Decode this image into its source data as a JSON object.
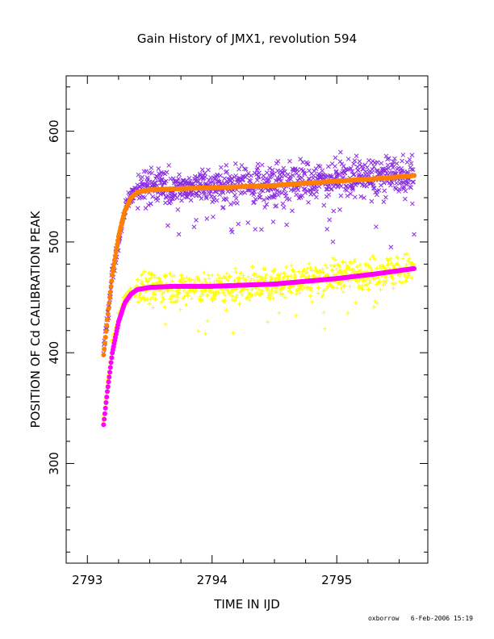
{
  "chart_data": {
    "type": "scatter",
    "title": "Gain History of JMX1, revolution 594",
    "xlabel": "TIME IN IJD",
    "ylabel": "POSITION OF Cd CALIBRATION PEAK",
    "xlim": [
      2792.83,
      2795.73
    ],
    "ylim": [
      210,
      650
    ],
    "x_ticks": [
      2793,
      2794,
      2795
    ],
    "x_tick_labels": [
      "2793",
      "2794",
      "2795"
    ],
    "y_ticks": [
      300,
      400,
      500,
      600
    ],
    "y_tick_labels": [
      "300",
      "400",
      "500",
      "600"
    ],
    "x_minor_step": 0.25,
    "y_minor_step": 20,
    "grid": false,
    "legend": "none",
    "footer": "oxborrow   6-Feb-2006 15:19",
    "series": [
      {
        "marker": "x",
        "color": "#8a2be2",
        "kind": "scatter",
        "x_range": [
          2793.13,
          2795.62
        ],
        "baseline": [
          [
            2793.13,
            400
          ],
          [
            2793.2,
            470
          ],
          [
            2793.3,
            530
          ],
          [
            2793.4,
            548
          ],
          [
            2793.6,
            550
          ],
          [
            2794.0,
            550
          ],
          [
            2794.5,
            552
          ],
          [
            2795.0,
            558
          ],
          [
            2795.62,
            560
          ]
        ],
        "spread": 12,
        "outlier_low": 50
      },
      {
        "marker": "+",
        "color": "#ffff00",
        "kind": "scatter",
        "x_range": [
          2793.13,
          2795.62
        ],
        "baseline": [
          [
            2793.13,
            340
          ],
          [
            2793.2,
            410
          ],
          [
            2793.3,
            450
          ],
          [
            2793.4,
            458
          ],
          [
            2793.6,
            460
          ],
          [
            2794.0,
            458
          ],
          [
            2794.5,
            462
          ],
          [
            2795.0,
            470
          ],
          [
            2795.62,
            476
          ]
        ],
        "spread": 10,
        "outlier_low": 40
      },
      {
        "marker": "o",
        "color": "#ff8000",
        "kind": "fit",
        "points": [
          [
            2793.13,
            398
          ],
          [
            2793.16,
            430
          ],
          [
            2793.2,
            470
          ],
          [
            2793.25,
            505
          ],
          [
            2793.3,
            528
          ],
          [
            2793.35,
            540
          ],
          [
            2793.4,
            545
          ],
          [
            2793.5,
            547
          ],
          [
            2793.7,
            548
          ],
          [
            2794.0,
            549
          ],
          [
            2794.5,
            551
          ],
          [
            2795.0,
            555
          ],
          [
            2795.3,
            557
          ],
          [
            2795.62,
            560
          ]
        ]
      },
      {
        "marker": "o",
        "color": "#ff00ff",
        "kind": "fit",
        "points": [
          [
            2793.13,
            335
          ],
          [
            2793.16,
            365
          ],
          [
            2793.2,
            400
          ],
          [
            2793.25,
            428
          ],
          [
            2793.3,
            445
          ],
          [
            2793.35,
            453
          ],
          [
            2793.4,
            457
          ],
          [
            2793.5,
            459
          ],
          [
            2793.7,
            460
          ],
          [
            2794.0,
            460
          ],
          [
            2794.5,
            462
          ],
          [
            2795.0,
            467
          ],
          [
            2795.3,
            471
          ],
          [
            2795.62,
            476
          ]
        ]
      }
    ]
  }
}
